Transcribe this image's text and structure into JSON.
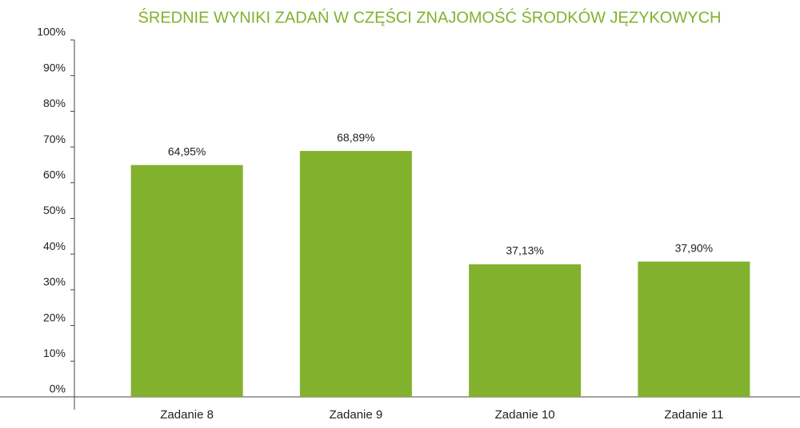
{
  "chart_data": {
    "type": "bar",
    "title": "ŚREDNIE WYNIKI ZADAŃ W CZĘŚCI ZNAJOMOŚĆ ŚRODKÓW JĘZYKOWYCH",
    "categories": [
      "Zadanie 8",
      "Zadanie 9",
      "Zadanie 10",
      "Zadanie 11"
    ],
    "values": [
      64.95,
      68.89,
      37.13,
      37.9
    ],
    "value_labels": [
      "64,95%",
      "68,89%",
      "37,13%",
      "37,90%"
    ],
    "color": "#82b12e",
    "ylim": [
      0,
      100
    ],
    "yticks": [
      {
        "value": 0,
        "label": "0%"
      },
      {
        "value": 10,
        "label": "10%"
      },
      {
        "value": 20,
        "label": "20%"
      },
      {
        "value": 30,
        "label": "30%"
      },
      {
        "value": 40,
        "label": "40%"
      },
      {
        "value": 50,
        "label": "50%"
      },
      {
        "value": 60,
        "label": "60%"
      },
      {
        "value": 70,
        "label": "70%"
      },
      {
        "value": 80,
        "label": "80%"
      },
      {
        "value": 90,
        "label": "90%"
      },
      {
        "value": 100,
        "label": "100%"
      }
    ],
    "grid": false
  }
}
